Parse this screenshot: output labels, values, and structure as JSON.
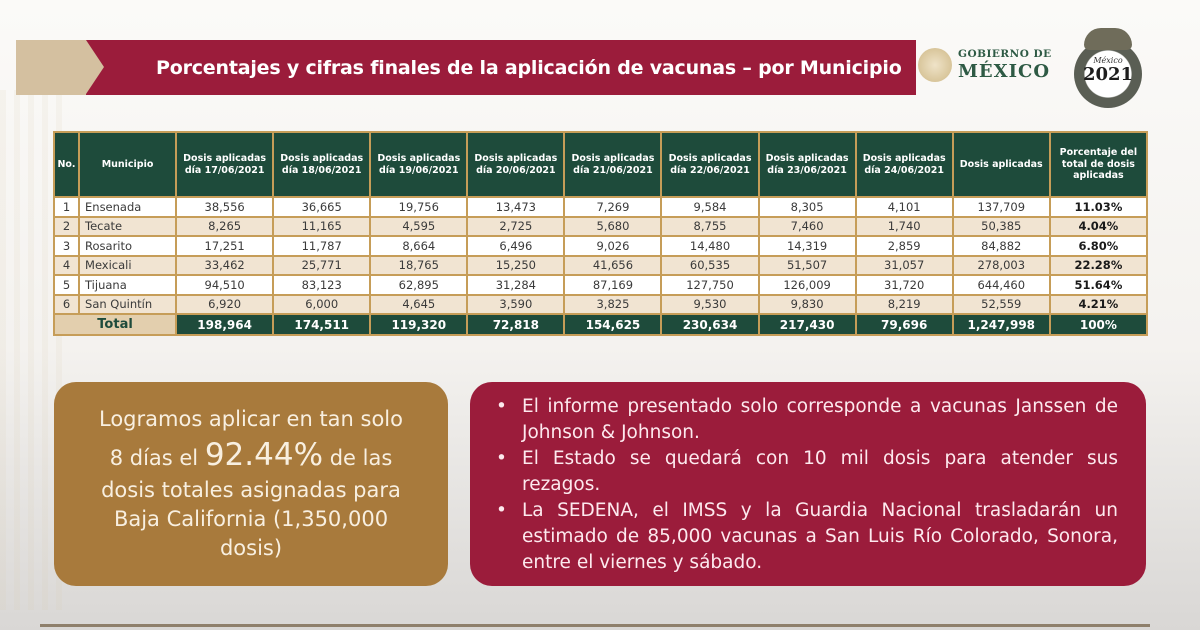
{
  "header": {
    "title": "Porcentajes y cifras finales de la aplicación de vacunas – por Municipio",
    "logo_gobierno_small": "GOBIERNO DE",
    "logo_gobierno_big": "MÉXICO",
    "emblem_top": "México",
    "emblem_year": "2021"
  },
  "colors": {
    "banner_red": "#9b1c3b",
    "banner_tan": "#d4c0a0",
    "table_header_green": "#1e4b3b",
    "table_border_gold": "#c69d58",
    "gold_box": "#a87a3c",
    "red_box": "#9b1c3b"
  },
  "table": {
    "headers": [
      "No.",
      "Municipio",
      "Dosis aplicadas día 17/06/2021",
      "Dosis aplicadas día 18/06/2021",
      "Dosis aplicadas día 19/06/2021",
      "Dosis aplicadas día 20/06/2021",
      "Dosis aplicadas día 21/06/2021",
      "Dosis aplicadas día 22/06/2021",
      "Dosis aplicadas día 23/06/2021",
      "Dosis aplicadas día 24/06/2021",
      "Dosis aplicadas",
      "Porcentaje del total de dosis aplicadas"
    ],
    "rows": [
      [
        "1",
        "Ensenada",
        "38,556",
        "36,665",
        "19,756",
        "13,473",
        "7,269",
        "9,584",
        "8,305",
        "4,101",
        "137,709",
        "11.03%"
      ],
      [
        "2",
        "Tecate",
        "8,265",
        "11,165",
        "4,595",
        "2,725",
        "5,680",
        "8,755",
        "7,460",
        "1,740",
        "50,385",
        "4.04%"
      ],
      [
        "3",
        "Rosarito",
        "17,251",
        "11,787",
        "8,664",
        "6,496",
        "9,026",
        "14,480",
        "14,319",
        "2,859",
        "84,882",
        "6.80%"
      ],
      [
        "4",
        "Mexicali",
        "33,462",
        "25,771",
        "18,765",
        "15,250",
        "41,656",
        "60,535",
        "51,507",
        "31,057",
        "278,003",
        "22.28%"
      ],
      [
        "5",
        "Tijuana",
        "94,510",
        "83,123",
        "62,895",
        "31,284",
        "87,169",
        "127,750",
        "126,009",
        "31,720",
        "644,460",
        "51.64%"
      ],
      [
        "6",
        "San Quintín",
        "6,920",
        "6,000",
        "4,645",
        "3,590",
        "3,825",
        "9,530",
        "9,830",
        "8,219",
        "52,559",
        "4.21%"
      ]
    ],
    "total": {
      "label": "Total",
      "values": [
        "198,964",
        "174,511",
        "119,320",
        "72,818",
        "154,625",
        "230,634",
        "217,430",
        "79,696",
        "1,247,998",
        "100%"
      ]
    }
  },
  "summary_box": {
    "line1": "Logramos aplicar en tan solo",
    "line2_pre": "8 días el ",
    "line2_highlight": "92.44%",
    "line2_post": " de las",
    "line3": "dosis totales asignadas para",
    "line4": "Baja California (1,350,000",
    "line5": "dosis)"
  },
  "notes_box": {
    "bullet_symbol": "•",
    "items": [
      "El informe presentado solo corresponde a vacunas Janssen de Johnson & Johnson.",
      "El Estado se quedará con 10 mil dosis para atender sus rezagos.",
      "La SEDENA, el IMSS y la Guardia Nacional trasladarán un estimado de 85,000 vacunas a San Luis Río Colorado, Sonora, entre el viernes y sábado."
    ]
  }
}
